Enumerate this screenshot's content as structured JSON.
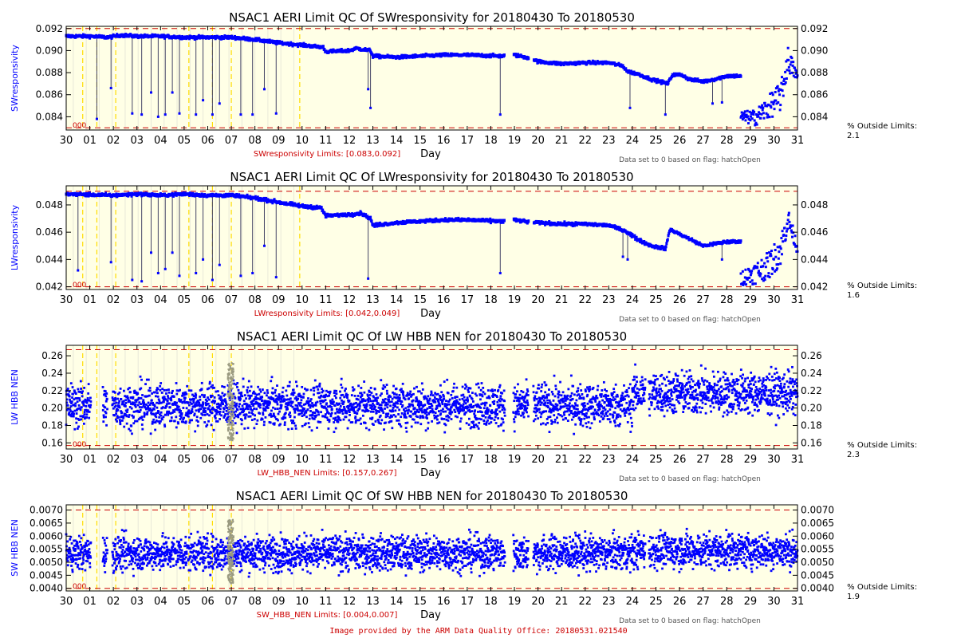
{
  "footer": "Image provided by the ARM Data Quality Office: 20180531.021540",
  "colors": {
    "plot_background": "#ffffe6",
    "data": "#0000ff",
    "limit_line": "#cc0000",
    "marker_line": "#ffdd00",
    "text": "#000000",
    "limits_text": "#cc0000",
    "note_text": "#555555"
  },
  "chart_data": [
    {
      "type": "scatter",
      "title": "NSAC1 AERI Limit QC Of SWresponsivity for 20180430 To 20180530",
      "ylabel": "SWresponsivity",
      "xlabel": "Day",
      "x_tick_labels": [
        "30",
        "01",
        "02",
        "03",
        "04",
        "05",
        "06",
        "07",
        "08",
        "09",
        "10",
        "11",
        "12",
        "13",
        "14",
        "15",
        "16",
        "17",
        "18",
        "19",
        "20",
        "21",
        "22",
        "23",
        "24",
        "25",
        "26",
        "27",
        "28",
        "29",
        "30",
        "31"
      ],
      "y_ticks": [
        "0.084",
        "0.086",
        "0.088",
        "0.090",
        "0.092"
      ],
      "ylim": [
        0.0828,
        0.0922
      ],
      "limits": [
        0.083,
        0.092
      ],
      "limits_label": "SWresponsivity Limits: [0.083,0.092]",
      "pct_outside_label": "% Outside Limits:",
      "pct_outside": "2.1",
      "zero_label": "000",
      "note": "Data set to 0 based on flag: hatchOpen",
      "marker_days": [
        0.7,
        1.3,
        2.1,
        5.2,
        6.2,
        7.0,
        9.9
      ],
      "trace": [
        [
          0,
          0.0913
        ],
        [
          1,
          0.0913
        ],
        [
          1.8,
          0.0912
        ],
        [
          2.3,
          0.0914
        ],
        [
          3,
          0.0913
        ],
        [
          4,
          0.0913
        ],
        [
          5,
          0.0912
        ],
        [
          6,
          0.0912
        ],
        [
          7,
          0.0912
        ],
        [
          8,
          0.091
        ],
        [
          9,
          0.0907
        ],
        [
          10,
          0.0905
        ],
        [
          10.9,
          0.0903
        ],
        [
          11,
          0.0899
        ],
        [
          12,
          0.09
        ],
        [
          12.3,
          0.0902
        ],
        [
          12.9,
          0.09
        ],
        [
          13,
          0.0895
        ],
        [
          14,
          0.0894
        ],
        [
          15,
          0.0895
        ],
        [
          16,
          0.0896
        ],
        [
          17,
          0.0896
        ],
        [
          18.5,
          0.0895
        ],
        [
          19,
          0.0896
        ],
        [
          19.7,
          0.0893
        ],
        [
          20,
          0.089
        ],
        [
          21,
          0.0888
        ],
        [
          22,
          0.0889
        ],
        [
          23,
          0.0889
        ],
        [
          23.6,
          0.0886
        ],
        [
          23.8,
          0.0881
        ],
        [
          24.2,
          0.0879
        ],
        [
          24.8,
          0.0874
        ],
        [
          25.5,
          0.087
        ],
        [
          25.7,
          0.0878
        ],
        [
          26.1,
          0.0878
        ],
        [
          26.4,
          0.0874
        ],
        [
          27,
          0.0872
        ],
        [
          27.5,
          0.0874
        ],
        [
          28,
          0.0877
        ]
      ],
      "band_start": 28.6,
      "band_end": 31,
      "band_low": [
        [
          28.6,
          0.0835
        ],
        [
          29.2,
          0.0832
        ],
        [
          29.8,
          0.0838
        ],
        [
          30.3,
          0.0845
        ],
        [
          30.6,
          0.088
        ],
        [
          31,
          0.0872
        ]
      ],
      "band_high": [
        [
          28.6,
          0.0845
        ],
        [
          29.2,
          0.0846
        ],
        [
          29.8,
          0.086
        ],
        [
          30.3,
          0.0872
        ],
        [
          30.6,
          0.0904
        ],
        [
          31,
          0.088
        ]
      ],
      "spikes": [
        [
          1.3,
          0.0838
        ],
        [
          1.9,
          0.0866
        ],
        [
          2.8,
          0.0843
        ],
        [
          3.2,
          0.0842
        ],
        [
          3.6,
          0.0862
        ],
        [
          3.9,
          0.084
        ],
        [
          4.2,
          0.0842
        ],
        [
          4.5,
          0.0862
        ],
        [
          4.8,
          0.0843
        ],
        [
          5.5,
          0.0842
        ],
        [
          5.8,
          0.0855
        ],
        [
          6.2,
          0.0842
        ],
        [
          6.5,
          0.0852
        ],
        [
          7.4,
          0.0842
        ],
        [
          7.9,
          0.0842
        ],
        [
          8.4,
          0.0865
        ],
        [
          8.9,
          0.0843
        ],
        [
          12.8,
          0.0865
        ],
        [
          12.9,
          0.0848
        ],
        [
          18.4,
          0.0842
        ],
        [
          23.9,
          0.0848
        ],
        [
          25.4,
          0.0842
        ],
        [
          27.8,
          0.0853
        ],
        [
          27.4,
          0.0852
        ]
      ],
      "gaps": [
        [
          18.6,
          18.95
        ],
        [
          19.6,
          19.8
        ]
      ],
      "noise": 0.00012
    },
    {
      "type": "scatter",
      "title": "NSAC1 AERI Limit QC Of LWresponsivity for 20180430 To 20180530",
      "ylabel": "LWresponsivity",
      "xlabel": "Day",
      "x_tick_labels": [
        "30",
        "01",
        "02",
        "03",
        "04",
        "05",
        "06",
        "07",
        "08",
        "09",
        "10",
        "11",
        "12",
        "13",
        "14",
        "15",
        "16",
        "17",
        "18",
        "19",
        "20",
        "21",
        "22",
        "23",
        "24",
        "25",
        "26",
        "27",
        "28",
        "29",
        "30",
        "31"
      ],
      "y_ticks": [
        "0.042",
        "0.044",
        "0.046",
        "0.048"
      ],
      "ylim": [
        0.0418,
        0.0494
      ],
      "limits": [
        0.042,
        0.049
      ],
      "limits_label": "LWresponsivity Limits: [0.042,0.049]",
      "pct_outside_label": "% Outside Limits:",
      "pct_outside": "1.6",
      "zero_label": "000",
      "note": "Data set to 0 based on flag: hatchOpen",
      "marker_days": [
        0.7,
        1.3,
        2.1,
        5.2,
        6.2,
        7.0,
        9.9
      ],
      "trace": [
        [
          0,
          0.0488
        ],
        [
          2,
          0.0487
        ],
        [
          3,
          0.0488
        ],
        [
          4,
          0.0487
        ],
        [
          5,
          0.0488
        ],
        [
          6,
          0.0487
        ],
        [
          7,
          0.0487
        ],
        [
          8,
          0.0485
        ],
        [
          9,
          0.0482
        ],
        [
          10,
          0.0479
        ],
        [
          10.8,
          0.0478
        ],
        [
          11,
          0.0472
        ],
        [
          12,
          0.0473
        ],
        [
          12.5,
          0.0474
        ],
        [
          12.9,
          0.047
        ],
        [
          13,
          0.0465
        ],
        [
          14,
          0.0467
        ],
        [
          15,
          0.0468
        ],
        [
          16,
          0.0469
        ],
        [
          17,
          0.0469
        ],
        [
          18.5,
          0.0468
        ],
        [
          19,
          0.0469
        ],
        [
          19.8,
          0.0467
        ],
        [
          20,
          0.0467
        ],
        [
          21,
          0.0466
        ],
        [
          22,
          0.0466
        ],
        [
          23,
          0.0465
        ],
        [
          23.7,
          0.0461
        ],
        [
          24.2,
          0.0455
        ],
        [
          24.8,
          0.045
        ],
        [
          25.4,
          0.0448
        ],
        [
          25.6,
          0.0462
        ],
        [
          26.2,
          0.0457
        ],
        [
          27,
          0.045
        ],
        [
          28,
          0.0453
        ]
      ],
      "band_start": 28.6,
      "band_end": 31,
      "band_low": [
        [
          28.6,
          0.0421
        ],
        [
          29.2,
          0.0422
        ],
        [
          29.8,
          0.0426
        ],
        [
          30.3,
          0.0436
        ],
        [
          30.6,
          0.0462
        ],
        [
          31,
          0.0444
        ]
      ],
      "band_high": [
        [
          28.6,
          0.0432
        ],
        [
          29.2,
          0.0438
        ],
        [
          29.8,
          0.0446
        ],
        [
          30.3,
          0.046
        ],
        [
          30.6,
          0.0478
        ],
        [
          31,
          0.0452
        ]
      ],
      "spikes": [
        [
          0.5,
          0.0432
        ],
        [
          1.9,
          0.0438
        ],
        [
          2.8,
          0.0425
        ],
        [
          3.2,
          0.0424
        ],
        [
          3.6,
          0.0445
        ],
        [
          3.9,
          0.043
        ],
        [
          4.2,
          0.0433
        ],
        [
          4.5,
          0.0445
        ],
        [
          4.8,
          0.0428
        ],
        [
          5.5,
          0.043
        ],
        [
          5.8,
          0.044
        ],
        [
          6.2,
          0.0425
        ],
        [
          6.5,
          0.0436
        ],
        [
          7.4,
          0.0428
        ],
        [
          7.9,
          0.043
        ],
        [
          8.4,
          0.045
        ],
        [
          8.9,
          0.0427
        ],
        [
          12.8,
          0.0426
        ],
        [
          18.4,
          0.043
        ],
        [
          23.6,
          0.0442
        ],
        [
          23.8,
          0.044
        ],
        [
          27.8,
          0.044
        ]
      ],
      "gaps": [
        [
          18.6,
          18.95
        ],
        [
          19.6,
          19.8
        ]
      ],
      "noise": 0.0001
    },
    {
      "type": "scatter",
      "title": "NSAC1 AERI Limit QC Of LW HBB NEN for 20180430 To 20180530",
      "ylabel": "LW HBB NEN",
      "xlabel": "Day",
      "x_tick_labels": [
        "30",
        "01",
        "02",
        "03",
        "04",
        "05",
        "06",
        "07",
        "08",
        "09",
        "10",
        "11",
        "12",
        "13",
        "14",
        "15",
        "16",
        "17",
        "18",
        "19",
        "20",
        "21",
        "22",
        "23",
        "24",
        "25",
        "26",
        "27",
        "28",
        "29",
        "30",
        "31"
      ],
      "y_ticks": [
        "0.16",
        "0.18",
        "0.20",
        "0.22",
        "0.24",
        "0.26"
      ],
      "ylim": [
        0.153,
        0.272
      ],
      "limits": [
        0.157,
        0.267
      ],
      "limits_label": "LW_HBB_NEN Limits: [0.157,0.267]",
      "pct_outside_label": "% Outside Limits:",
      "pct_outside": "2.3",
      "zero_label": "000",
      "note": "Data set to 0 based on flag: hatchOpen",
      "marker_days": [
        0.7,
        1.3,
        2.1,
        5.2,
        6.2,
        7.0
      ],
      "center": 0.203,
      "spread": 0.024,
      "gaps": [
        [
          1.05,
          1.55
        ],
        [
          1.75,
          1.95
        ],
        [
          18.6,
          18.95
        ],
        [
          19.6,
          19.8
        ],
        [
          24.55,
          24.7
        ]
      ],
      "late_center": 0.217,
      "late_from": 24
    },
    {
      "type": "scatter",
      "title": "NSAC1 AERI Limit QC Of SW HBB NEN for 20180430 To 20180530",
      "ylabel": "SW HBB NEN",
      "xlabel": "Day",
      "x_tick_labels": [
        "30",
        "01",
        "02",
        "03",
        "04",
        "05",
        "06",
        "07",
        "08",
        "09",
        "10",
        "11",
        "12",
        "13",
        "14",
        "15",
        "16",
        "17",
        "18",
        "19",
        "20",
        "21",
        "22",
        "23",
        "24",
        "25",
        "26",
        "27",
        "28",
        "29",
        "30",
        "31"
      ],
      "y_ticks": [
        "0.0040",
        "0.0045",
        "0.0050",
        "0.0055",
        "0.0060",
        "0.0065",
        "0.0070"
      ],
      "ylim": [
        0.0039,
        0.0072
      ],
      "limits": [
        0.004,
        0.007
      ],
      "limits_label": "SW_HBB_NEN Limits: [0.004,0.007]",
      "pct_outside_label": "% Outside Limits:",
      "pct_outside": "1.9",
      "zero_label": "000",
      "note": "Data set to 0 based on flag: hatchOpen",
      "marker_days": [
        0.7,
        1.3,
        2.1,
        5.2,
        6.2,
        7.0
      ],
      "center": 0.00535,
      "spread": 0.00065,
      "gaps": [
        [
          1.05,
          1.55
        ],
        [
          1.75,
          1.95
        ],
        [
          18.6,
          18.95
        ],
        [
          19.6,
          19.8
        ],
        [
          24.55,
          24.7
        ]
      ],
      "late_center": 0.00545,
      "late_from": 24
    }
  ]
}
